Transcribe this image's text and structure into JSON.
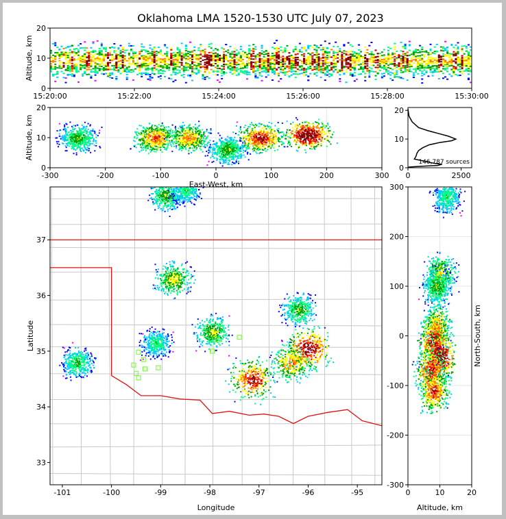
{
  "title": "Oklahoma LMA 1520-1530 UTC July 07, 2023",
  "colors": {
    "state_border": "#e01010",
    "county_line": "#c8c8c8",
    "profile_line": "#000000",
    "station_marker": "#7dff3a",
    "density_scale": [
      "#ff00ff",
      "#0000ff",
      "#00c8ff",
      "#00ff80",
      "#00a000",
      "#ffff00",
      "#ff8000",
      "#e00000",
      "#800000"
    ]
  },
  "chart_data": [
    {
      "id": "time_height",
      "type": "heatmap",
      "xlabel": "",
      "ylabel": "Altitude, km",
      "x_ticks": [
        "15:20:00",
        "15:22:00",
        "15:24:00",
        "15:26:00",
        "15:28:00",
        "15:30:00"
      ],
      "xlim": [
        "15:20:00",
        "15:30:00"
      ],
      "ylim": [
        0,
        20
      ],
      "y_ticks": [
        0,
        10,
        20
      ]
    },
    {
      "id": "ew_height",
      "type": "heatmap",
      "xlabel": "East-West, km",
      "ylabel": "Altitude, km",
      "xlim": [
        -300,
        300
      ],
      "ylim": [
        0,
        20
      ],
      "x_ticks": [
        -300,
        -200,
        -100,
        0,
        100,
        200,
        300
      ],
      "y_ticks": [
        0,
        10,
        20
      ],
      "clusters": [
        {
          "x": -250,
          "z": 10,
          "intensity": 0.5
        },
        {
          "x": -110,
          "z": 10,
          "intensity": 0.75
        },
        {
          "x": -50,
          "z": 10,
          "intensity": 0.7
        },
        {
          "x": 20,
          "z": 6,
          "intensity": 0.5
        },
        {
          "x": 80,
          "z": 10,
          "intensity": 0.85
        },
        {
          "x": 165,
          "z": 11,
          "intensity": 1.0
        }
      ]
    },
    {
      "id": "altitude_histogram",
      "type": "line",
      "xlabel": "",
      "ylabel": "",
      "xlim": [
        0,
        3000
      ],
      "ylim": [
        0,
        21
      ],
      "x_ticks": [
        0,
        2500
      ],
      "y_ticks": [
        0,
        10,
        20
      ],
      "annotation": "146,787 sources",
      "profile": [
        [
          0,
          20.5
        ],
        [
          50,
          18
        ],
        [
          200,
          16
        ],
        [
          500,
          14
        ],
        [
          900,
          13
        ],
        [
          1400,
          12
        ],
        [
          1900,
          11
        ],
        [
          2250,
          10
        ],
        [
          2050,
          9.4
        ],
        [
          1500,
          8.8
        ],
        [
          1000,
          8
        ],
        [
          700,
          7
        ],
        [
          500,
          6
        ],
        [
          420,
          5
        ],
        [
          380,
          4
        ],
        [
          300,
          3
        ],
        [
          700,
          2.4
        ],
        [
          1200,
          1.6
        ],
        [
          1600,
          1.2
        ],
        [
          1400,
          0.8
        ],
        [
          600,
          0.5
        ],
        [
          150,
          0.3
        ],
        [
          0,
          0.2
        ]
      ]
    },
    {
      "id": "plan_view",
      "type": "scatter",
      "xlabel": "Longitude",
      "ylabel": "Latitude",
      "xlim": [
        -101.25,
        -94.5
      ],
      "ylim": [
        32.6,
        37.95
      ],
      "x_ticks": [
        -101,
        -100,
        -99,
        -98,
        -97,
        -96,
        -95
      ],
      "y_ticks": [
        33,
        34,
        35,
        36,
        37
      ],
      "clusters": [
        {
          "lon": -98.9,
          "lat": 37.8,
          "intensity": 0.5
        },
        {
          "lon": -98.5,
          "lat": 37.9,
          "intensity": 0.4
        },
        {
          "lon": -98.75,
          "lat": 36.3,
          "intensity": 0.6
        },
        {
          "lon": -99.1,
          "lat": 35.15,
          "intensity": 0.4
        },
        {
          "lon": -97.95,
          "lat": 35.35,
          "intensity": 0.55
        },
        {
          "lon": -97.15,
          "lat": 34.5,
          "intensity": 0.85
        },
        {
          "lon": -96.35,
          "lat": 34.8,
          "intensity": 0.7
        },
        {
          "lon": -96.0,
          "lat": 35.05,
          "intensity": 0.9
        },
        {
          "lon": -96.2,
          "lat": 35.75,
          "intensity": 0.5
        },
        {
          "lon": -100.7,
          "lat": 34.8,
          "intensity": 0.45
        }
      ],
      "stations": [
        [
          -99.45,
          34.98
        ],
        [
          -99.55,
          34.75
        ],
        [
          -99.35,
          34.85
        ],
        [
          -99.32,
          34.68
        ],
        [
          -99.5,
          34.6
        ],
        [
          -99.45,
          34.52
        ],
        [
          -99.05,
          34.7
        ],
        [
          -97.95,
          35.0
        ],
        [
          -97.85,
          35.2
        ],
        [
          -97.4,
          35.25
        ]
      ]
    },
    {
      "id": "ns_height",
      "type": "heatmap",
      "xlabel": "Altitude, km",
      "ylabel": "North-South, km",
      "xlim": [
        0,
        20
      ],
      "ylim": [
        -300,
        300
      ],
      "x_ticks": [
        0,
        10,
        20
      ],
      "y_ticks": [
        -300,
        -200,
        -100,
        0,
        100,
        200,
        300
      ],
      "clusters": [
        {
          "ns": 280,
          "z": 12,
          "intensity": 0.4
        },
        {
          "ns": 125,
          "z": 10,
          "intensity": 0.6
        },
        {
          "ns": 100,
          "z": 9,
          "intensity": 0.5
        },
        {
          "ns": 20,
          "z": 9,
          "intensity": 0.7
        },
        {
          "ns": -10,
          "z": 8,
          "intensity": 0.9
        },
        {
          "ns": -40,
          "z": 10,
          "intensity": 1.0
        },
        {
          "ns": -70,
          "z": 7,
          "intensity": 0.85
        },
        {
          "ns": -110,
          "z": 8,
          "intensity": 0.8
        }
      ]
    }
  ]
}
